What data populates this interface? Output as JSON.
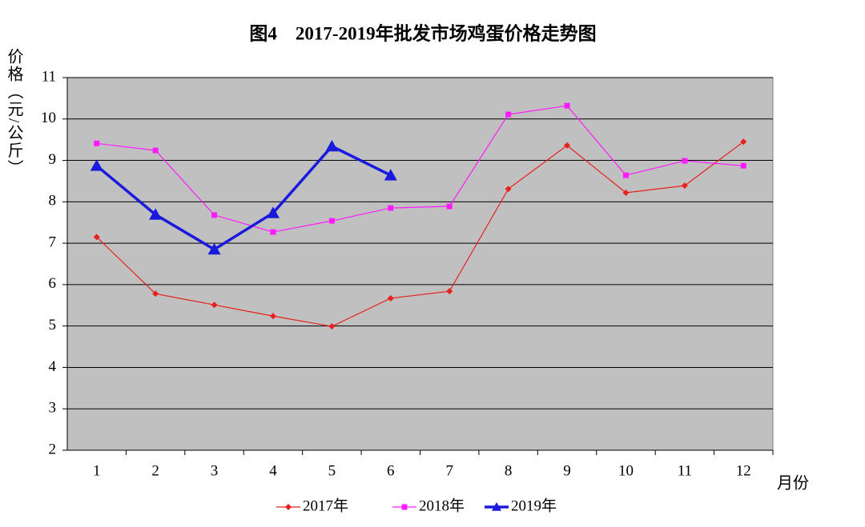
{
  "chart_data": {
    "type": "line",
    "title": "图4　2017-2019年批发市场鸡蛋价格走势图",
    "y_label": "价格（元/公斤）",
    "x_label": "月份",
    "categories": [
      "1",
      "2",
      "3",
      "4",
      "5",
      "6",
      "7",
      "8",
      "9",
      "10",
      "11",
      "12"
    ],
    "series": [
      {
        "name": "2017年",
        "color": "#e8211e",
        "marker": "diamond",
        "values": [
          7.15,
          5.78,
          5.51,
          5.24,
          4.99,
          5.67,
          5.84,
          8.31,
          9.36,
          8.22,
          8.39,
          9.45
        ]
      },
      {
        "name": "2018年",
        "color": "#ff1aff",
        "marker": "square",
        "values": [
          9.41,
          9.24,
          7.68,
          7.27,
          7.54,
          7.85,
          7.89,
          10.11,
          10.32,
          8.64,
          8.99,
          8.87
        ]
      },
      {
        "name": "2019年",
        "color": "#1a1adf",
        "marker": "triangle",
        "values": [
          8.87,
          7.69,
          6.85,
          7.73,
          9.34,
          8.64,
          null,
          null,
          null,
          null,
          null,
          null
        ]
      }
    ],
    "ylim": [
      2,
      11
    ],
    "yticks": [
      2,
      3,
      4,
      5,
      6,
      7,
      8,
      9,
      10,
      11
    ],
    "grid": true,
    "legend": "bottom"
  }
}
